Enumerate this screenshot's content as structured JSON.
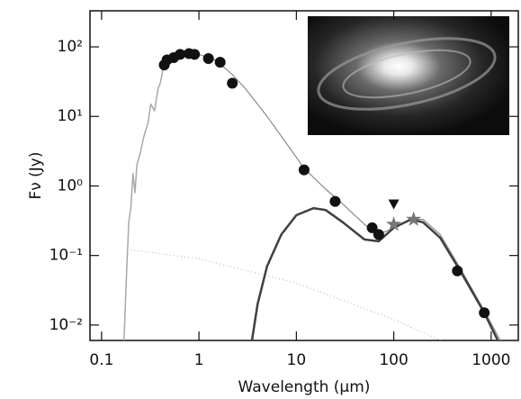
{
  "chart_data": {
    "type": "line",
    "x_label": "Wavelength (μm)",
    "y_label": "Fν (Jy)",
    "log_x": true,
    "log_y": true,
    "xlim": [
      0.076,
      1900
    ],
    "ylim": [
      0.006,
      330
    ],
    "xticks": [
      0.1,
      1,
      10,
      100,
      1000
    ],
    "yticks": [
      {
        "value": 0.01,
        "label": "10⁻²"
      },
      {
        "value": 0.1,
        "label": "10⁻¹"
      },
      {
        "value": 1,
        "label": "10⁰"
      },
      {
        "value": 10,
        "label": "10¹"
      },
      {
        "value": 100,
        "label": "10²"
      }
    ],
    "series": [
      {
        "style": "line",
        "color": "#a8a8a8",
        "width": 1.5,
        "x": [
          0.17,
          0.18,
          0.19,
          0.2,
          0.21,
          0.22,
          0.23,
          0.25,
          0.27,
          0.3,
          0.32,
          0.35,
          0.38,
          0.4,
          0.43
        ],
        "values": [
          0.006,
          0.05,
          0.3,
          0.5,
          1.5,
          0.8,
          2,
          3,
          5,
          8,
          15,
          12,
          25,
          30,
          50
        ]
      },
      {
        "style": "dotted",
        "color": "#b0b0b0",
        "width": 1,
        "x": [
          0.2,
          1,
          10,
          100,
          400
        ],
        "values": [
          0.12,
          0.09,
          0.04,
          0.012,
          0.005
        ]
      },
      {
        "style": "line",
        "color": "#8a8a8a",
        "width": 1.2,
        "x": [
          0.45,
          0.6,
          0.8,
          1,
          1.5,
          2.2,
          3,
          5,
          8,
          12,
          20,
          30,
          50,
          70,
          100,
          150,
          200,
          300,
          500,
          850,
          1900
        ],
        "values": [
          55,
          72,
          80,
          78,
          64,
          40,
          25,
          10,
          4,
          1.8,
          0.9,
          0.55,
          0.28,
          0.2,
          0.25,
          0.33,
          0.33,
          0.2,
          0.06,
          0.016,
          0.002
        ]
      },
      {
        "style": "line",
        "color": "#404040",
        "width": 2.5,
        "x": [
          3.5,
          4,
          5,
          7,
          10,
          15,
          20,
          30,
          50,
          70,
          100,
          150,
          200,
          300,
          500,
          850,
          1900
        ],
        "values": [
          0.006,
          0.02,
          0.07,
          0.2,
          0.38,
          0.48,
          0.45,
          0.3,
          0.17,
          0.16,
          0.25,
          0.33,
          0.3,
          0.18,
          0.055,
          0.015,
          0.0015
        ]
      },
      {
        "style": "circle",
        "color": "#111111",
        "x": [
          0.44,
          0.47,
          0.55,
          0.64,
          0.79,
          0.9,
          1.25,
          1.65,
          2.2,
          12,
          25,
          60,
          70,
          450,
          850
        ],
        "values": [
          55,
          65,
          70,
          78,
          80,
          78,
          68,
          60,
          30,
          1.7,
          0.6,
          0.25,
          0.2,
          0.06,
          0.015
        ]
      },
      {
        "style": "star",
        "color": "#777777",
        "x": [
          100,
          160
        ],
        "values": [
          0.28,
          0.33
        ]
      },
      {
        "style": "triangle-down",
        "color": "#111111",
        "x": [
          100
        ],
        "values": [
          0.55
        ]
      }
    ]
  }
}
